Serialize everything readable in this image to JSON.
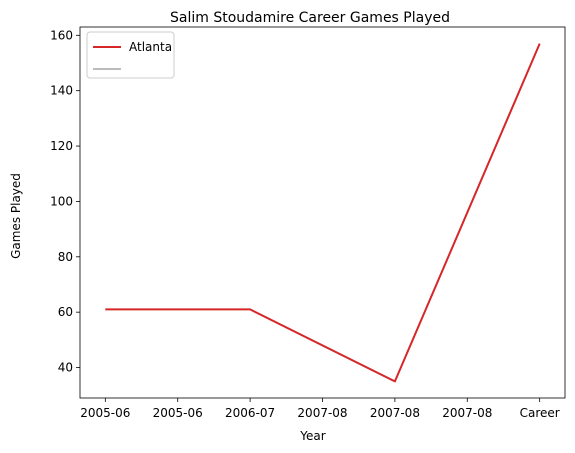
{
  "chart_data": {
    "type": "line",
    "title": "Salim Stoudamire Career Games Played",
    "xlabel": "Year",
    "ylabel": "Games Played",
    "categories": [
      "2005-06",
      "2006-07",
      "2007-08",
      "Career"
    ],
    "x_tick_labels": [
      "2005-06",
      "2005-06",
      "2006-07",
      "2007-08",
      "2007-08",
      "2007-08",
      "Career"
    ],
    "y_ticks": [
      40,
      60,
      80,
      100,
      120,
      140,
      160
    ],
    "ylim": [
      29,
      163
    ],
    "grid": false,
    "legend_position": "top-left",
    "series": [
      {
        "name": "Atlanta",
        "color": "#d62728",
        "x": [
          0,
          2,
          4,
          6
        ],
        "values": [
          61,
          61,
          35,
          157
        ]
      },
      {
        "name": "",
        "color": "#bbbbbb",
        "x": [],
        "values": []
      }
    ]
  }
}
